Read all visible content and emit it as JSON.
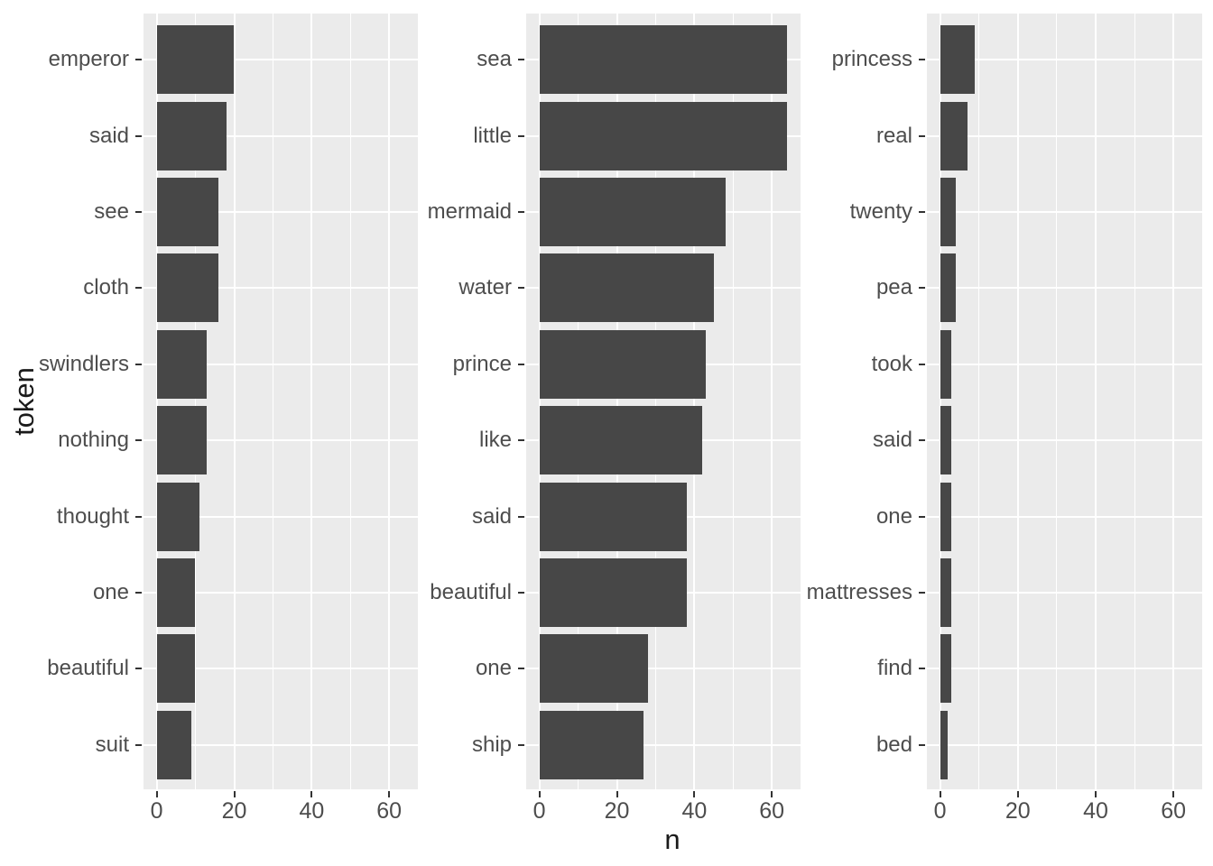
{
  "chart_data": {
    "type": "bar",
    "orientation": "horizontal",
    "title": "",
    "xlabel": "n",
    "ylabel": "token",
    "x_major_ticks": [
      0,
      20,
      40,
      60
    ],
    "x_minor_ticks": [
      10,
      30,
      50
    ],
    "xlim": [
      -3.4,
      67.4
    ],
    "grid": true,
    "legend": "none",
    "panels": [
      {
        "name": "facet-1",
        "categories": [
          "emperor",
          "said",
          "see",
          "cloth",
          "swindlers",
          "nothing",
          "thought",
          "one",
          "beautiful",
          "suit"
        ],
        "values": [
          20,
          18,
          16,
          16,
          13,
          13,
          11,
          10,
          10,
          9
        ]
      },
      {
        "name": "facet-2",
        "categories": [
          "sea",
          "little",
          "mermaid",
          "water",
          "prince",
          "like",
          "said",
          "beautiful",
          "one",
          "ship"
        ],
        "values": [
          64,
          64,
          48,
          45,
          43,
          42,
          38,
          38,
          28,
          27
        ]
      },
      {
        "name": "facet-3",
        "categories": [
          "princess",
          "real",
          "twenty",
          "pea",
          "took",
          "said",
          "one",
          "mattresses",
          "find",
          "bed"
        ],
        "values": [
          9,
          7,
          4,
          4,
          3,
          3,
          3,
          3,
          3,
          2
        ]
      }
    ],
    "colors": {
      "bar": "#474747",
      "panel_background": "#EBEBEB",
      "gridline": "#FFFFFF",
      "axis_text": "#4D4D4D",
      "axis_title": "#1A1A1A",
      "tick_mark": "#333333"
    }
  }
}
